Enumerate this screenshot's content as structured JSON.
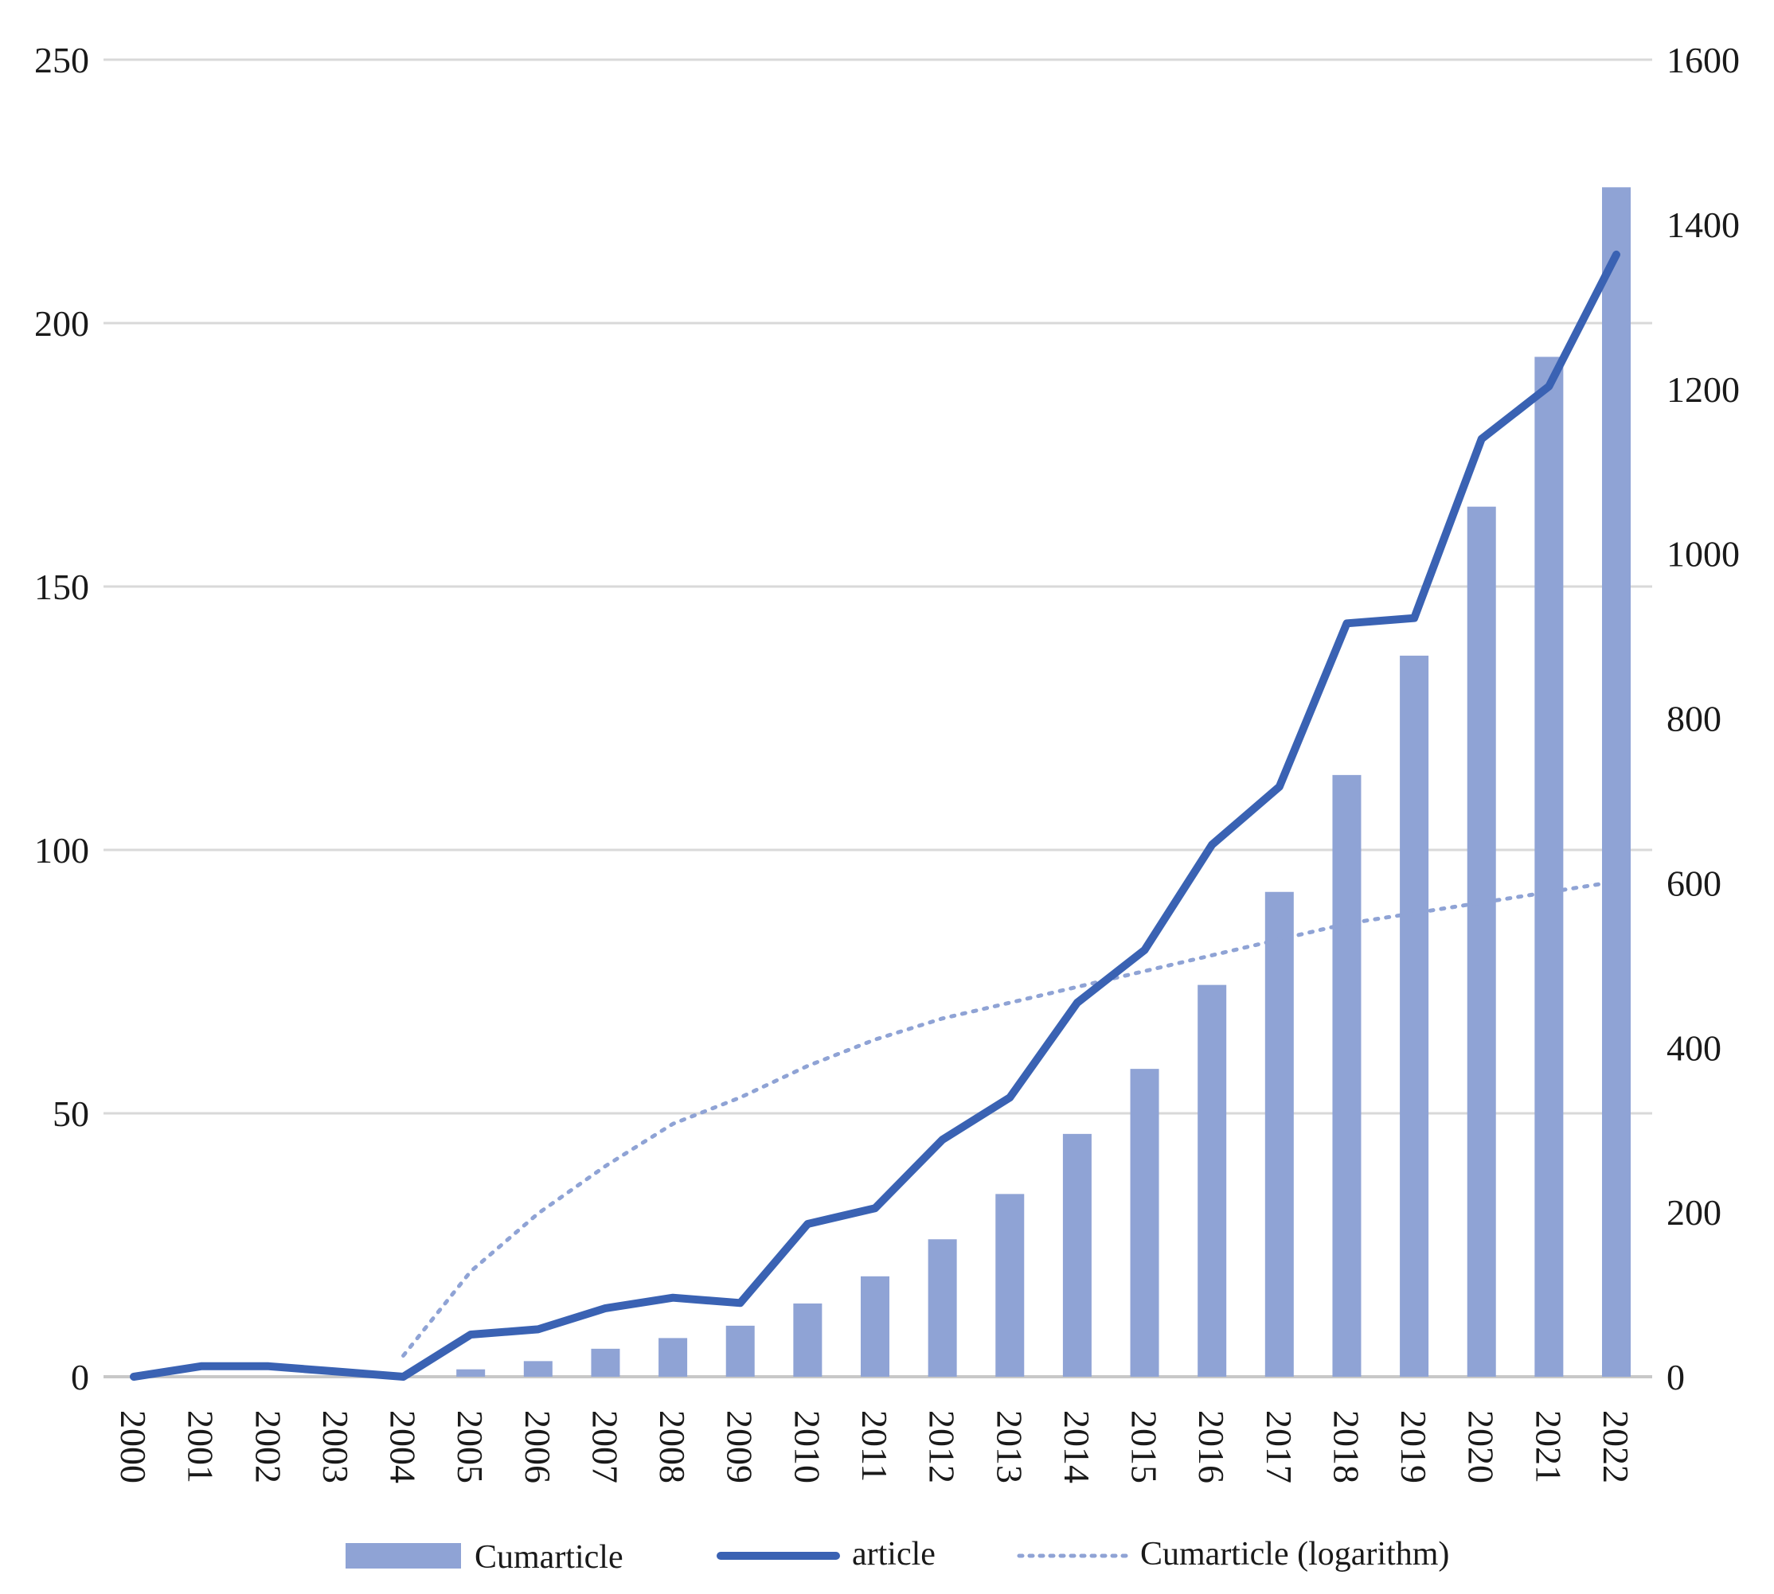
{
  "chart_data": {
    "type": "bar+line",
    "title": "",
    "xlabel": "",
    "ylabel": "",
    "categories": [
      "2000",
      "2001",
      "2002",
      "2003",
      "2004",
      "2005",
      "2006",
      "2007",
      "2008",
      "2009",
      "2010",
      "2011",
      "2012",
      "2013",
      "2014",
      "2015",
      "2016",
      "2017",
      "2018",
      "2019",
      "2020",
      "2021",
      "2022"
    ],
    "left_axis": {
      "min": 0,
      "max": 250,
      "ticks": [
        "0",
        "50",
        "100",
        "150",
        "200",
        "250"
      ]
    },
    "right_axis": {
      "min": 0,
      "max": 1600,
      "ticks": [
        "0",
        "200",
        "400",
        "600",
        "800",
        "1000",
        "1200",
        "1400",
        "1600"
      ]
    },
    "grid": true,
    "legend_position": "bottom",
    "series": [
      {
        "name": "Cumarticle",
        "kind": "bar",
        "axis": "right",
        "color": "#8fa3d5",
        "values": [
          0,
          0,
          0,
          0,
          0,
          9,
          19,
          34,
          47,
          62,
          89,
          122,
          167,
          222,
          295,
          374,
          476,
          589,
          731,
          876,
          1057,
          1239,
          1445
        ]
      },
      {
        "name": "article",
        "kind": "line",
        "axis": "left",
        "color": "#3a62b3",
        "values": [
          0,
          2,
          2,
          1,
          0,
          8,
          9,
          13,
          15,
          14,
          29,
          32,
          45,
          53,
          71,
          81,
          101,
          112,
          143,
          144,
          178,
          188,
          213
        ]
      },
      {
        "name": "Cumarticle (logarithm)",
        "kind": "trend-dotted",
        "axis": "left",
        "color": "#8fa3d5",
        "values": [
          null,
          null,
          null,
          null,
          4,
          20,
          31,
          40,
          48,
          53,
          59,
          64,
          68,
          71,
          74,
          77,
          80,
          83,
          86,
          88,
          90,
          92,
          94
        ]
      }
    ]
  }
}
